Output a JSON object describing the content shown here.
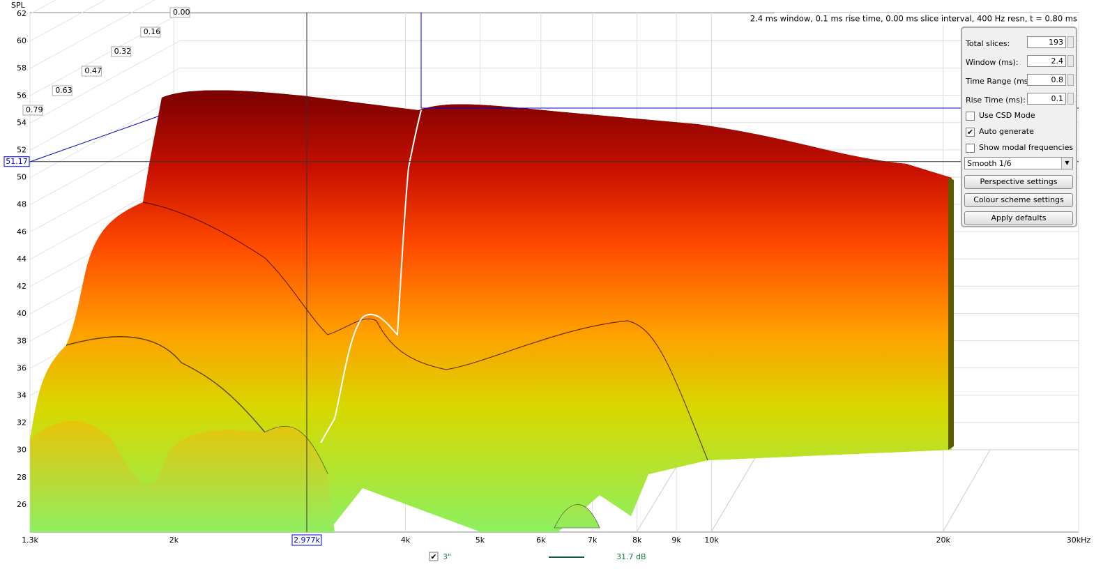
{
  "axis": {
    "y_title": "SPL",
    "ylim": [
      24,
      62
    ],
    "yticks": [
      62,
      60,
      58,
      56,
      54,
      52,
      50,
      48,
      46,
      44,
      42,
      40,
      38,
      36,
      34,
      32,
      30,
      28,
      26
    ],
    "xlim": [
      1300,
      30000
    ],
    "xticks": [
      {
        "value": 1300,
        "label": "1.3k"
      },
      {
        "value": 2000,
        "label": "2k"
      },
      {
        "value": 4000,
        "label": "4k"
      },
      {
        "value": 5000,
        "label": "5k"
      },
      {
        "value": 6000,
        "label": "6k"
      },
      {
        "value": 7000,
        "label": "7k"
      },
      {
        "value": 8000,
        "label": "8k"
      },
      {
        "value": 9000,
        "label": "9k"
      },
      {
        "value": 10000,
        "label": "10k"
      },
      {
        "value": 20000,
        "label": "20k"
      },
      {
        "value": 30000,
        "label": "30kHz"
      }
    ]
  },
  "depth_labels": [
    "0.00",
    "0.16",
    "0.32",
    "0.47",
    "0.63",
    "0.79"
  ],
  "cursor": {
    "x": {
      "value": 2977,
      "label": "2.977k"
    },
    "y": 51.17
  },
  "info": "2.4 ms window, 0.1 ms rise time, 0.00 ms slice interval, 400 Hz resn, t = 0.80 ms",
  "panel": {
    "fields": [
      {
        "label": "Total slices:",
        "value": 193
      },
      {
        "label": "Window (ms):",
        "value": 2.4
      },
      {
        "label": "Time Range (ms):",
        "value": 0.8
      },
      {
        "label": "Rise Time (ms):",
        "value": 0.1
      }
    ],
    "checkboxes": [
      {
        "label": "Use CSD Mode",
        "checked": false
      },
      {
        "label": "Auto generate",
        "checked": true
      },
      {
        "label": "Show modal frequencies",
        "checked": false
      }
    ],
    "dropdown": "Smooth 1/6",
    "buttons": [
      "Perspective settings",
      "Colour scheme settings",
      "Apply defaults"
    ]
  },
  "legend": {
    "checked": true,
    "name": "3\"",
    "value_label": "31.7 dB"
  }
}
